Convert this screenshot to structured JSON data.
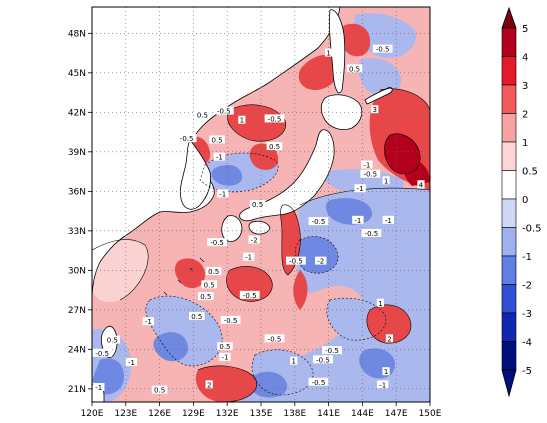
{
  "map": {
    "projection": "lat-lon",
    "lon_range": [
      120,
      150
    ],
    "lat_range": [
      20,
      50
    ],
    "x_ticks": [
      "120E",
      "123E",
      "126E",
      "129E",
      "132E",
      "135E",
      "138E",
      "141E",
      "144E",
      "147E",
      "150E"
    ],
    "x_tick_values": [
      120,
      123,
      126,
      129,
      132,
      135,
      138,
      141,
      144,
      147,
      150
    ],
    "y_ticks": [
      "21N",
      "24N",
      "27N",
      "30N",
      "33N",
      "36N",
      "39N",
      "42N",
      "45N",
      "48N"
    ],
    "y_tick_values": [
      21,
      24,
      27,
      30,
      33,
      36,
      39,
      42,
      45,
      48
    ],
    "grid": true,
    "grid_style": "dotted"
  },
  "colorbar": {
    "levels": [
      "5",
      "4",
      "3",
      "2",
      "1",
      "0.5",
      "0",
      "-0.5",
      "-1",
      "-2",
      "-3",
      "-4",
      "-5"
    ],
    "colors": [
      "#7a0010",
      "#b3001b",
      "#e31a2a",
      "#f25b5b",
      "#f7a3a3",
      "#fcd6d6",
      "#ffffff",
      "#cfd8f7",
      "#9eb0ef",
      "#5e7fe3",
      "#2f4fd6",
      "#1028b0",
      "#00107a"
    ],
    "orientation": "vertical",
    "extend": "both"
  },
  "colors": {
    "pos_fill": "#f4a6a6",
    "pos_strong": "#e8474a",
    "pos_max": "#b3001b",
    "neg_fill": "#a9b8ef",
    "neg_strong": "#5f7de0",
    "land": "#ffffff",
    "coast": "#000000"
  },
  "contour_labels": [
    {
      "t": "1",
      "lon": 141.0,
      "lat": 46.5
    },
    {
      "t": "-0.5",
      "lon": 145.8,
      "lat": 46.8
    },
    {
      "t": "0.5",
      "lon": 143.3,
      "lat": 45.3
    },
    {
      "t": "0.5",
      "lon": 129.8,
      "lat": 41.8
    },
    {
      "t": "-0.5",
      "lon": 131.7,
      "lat": 42.1
    },
    {
      "t": "1",
      "lon": 133.3,
      "lat": 41.4
    },
    {
      "t": "-0.5",
      "lon": 136.2,
      "lat": 41.5
    },
    {
      "t": "-0.5",
      "lon": 128.4,
      "lat": 40.0
    },
    {
      "t": "0.5",
      "lon": 131.1,
      "lat": 39.9
    },
    {
      "t": "-1",
      "lon": 131.3,
      "lat": 38.6
    },
    {
      "t": "0.5",
      "lon": 136.2,
      "lat": 39.4
    },
    {
      "t": "-1",
      "lon": 144.4,
      "lat": 38.0
    },
    {
      "t": "-0.5",
      "lon": 144.7,
      "lat": 37.3
    },
    {
      "t": "1",
      "lon": 146.1,
      "lat": 36.8
    },
    {
      "t": "-1",
      "lon": 143.8,
      "lat": 36.2
    },
    {
      "t": "-1",
      "lon": 131.6,
      "lat": 35.8
    },
    {
      "t": "0.5",
      "lon": 134.7,
      "lat": 35.0
    },
    {
      "t": "-1",
      "lon": 146.3,
      "lat": 33.8
    },
    {
      "t": "-1",
      "lon": 143.6,
      "lat": 33.8
    },
    {
      "t": "-0.5",
      "lon": 140.1,
      "lat": 33.7
    },
    {
      "t": "-0.5",
      "lon": 144.8,
      "lat": 32.8
    },
    {
      "t": "-2",
      "lon": 134.4,
      "lat": 32.3
    },
    {
      "t": "-0.5",
      "lon": 131.1,
      "lat": 32.1
    },
    {
      "t": "-2",
      "lon": 140.3,
      "lat": 30.7
    },
    {
      "t": "-0.5",
      "lon": 138.1,
      "lat": 30.7
    },
    {
      "t": "0.5",
      "lon": 130.8,
      "lat": 29.9
    },
    {
      "t": "0.5",
      "lon": 130.4,
      "lat": 28.9
    },
    {
      "t": "-0.5",
      "lon": 134.0,
      "lat": 28.1
    },
    {
      "t": "-1",
      "lon": 125.0,
      "lat": 26.1
    },
    {
      "t": "1",
      "lon": 145.6,
      "lat": 27.5
    },
    {
      "t": "0.5",
      "lon": 129.3,
      "lat": 26.5
    },
    {
      "t": "-0.5",
      "lon": 132.3,
      "lat": 26.2
    },
    {
      "t": "-0.5",
      "lon": 120.9,
      "lat": 23.7
    },
    {
      "t": "-1",
      "lon": 123.5,
      "lat": 23.0
    },
    {
      "t": "0.5",
      "lon": 126.0,
      "lat": 20.9
    },
    {
      "t": "-0.5",
      "lon": 140.5,
      "lat": 23.2
    },
    {
      "t": "-0.5",
      "lon": 136.2,
      "lat": 24.8
    },
    {
      "t": "1",
      "lon": 137.9,
      "lat": 23.1
    },
    {
      "t": "-0.5",
      "lon": 141.3,
      "lat": 23.9
    },
    {
      "t": "2",
      "lon": 146.4,
      "lat": 24.8
    },
    {
      "t": "0.5",
      "lon": 131.8,
      "lat": 24.2
    },
    {
      "t": "-1",
      "lon": 131.8,
      "lat": 23.4
    },
    {
      "t": "2",
      "lon": 130.4,
      "lat": 21.3
    },
    {
      "t": "1",
      "lon": 146.1,
      "lat": 22.3
    },
    {
      "t": "-0.5",
      "lon": 140.1,
      "lat": 21.5
    },
    {
      "t": "-1",
      "lon": 145.8,
      "lat": 21.3
    },
    {
      "t": "-1",
      "lon": 120.6,
      "lat": 21.1
    },
    {
      "t": "0.5",
      "lon": 121.8,
      "lat": 24.7
    },
    {
      "t": "3",
      "lon": 145.1,
      "lat": 42.2
    },
    {
      "t": "4",
      "lon": 149.2,
      "lat": 36.5
    },
    {
      "t": "0.5",
      "lon": 130.1,
      "lat": 28.0
    },
    {
      "t": "-1",
      "lon": 133.9,
      "lat": 31.0
    }
  ]
}
